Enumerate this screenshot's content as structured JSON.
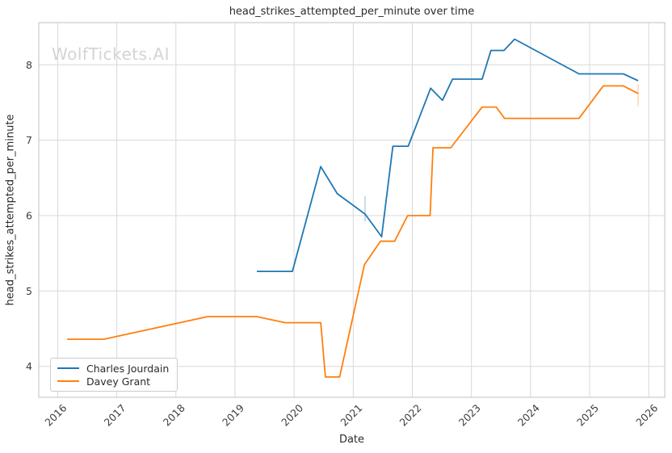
{
  "chart_data": {
    "type": "line",
    "title": "head_strikes_attempted_per_minute over time",
    "xlabel": "Date",
    "ylabel": "head_strikes_attempted_per_minute",
    "watermark": "WolfTickets.AI",
    "grid": true,
    "legend_position": "lower left",
    "xlim": [
      2015.68,
      2026.27
    ],
    "ylim": [
      3.59,
      8.56
    ],
    "x_ticks": [
      2016,
      2017,
      2018,
      2019,
      2020,
      2021,
      2022,
      2023,
      2024,
      2025,
      2026
    ],
    "y_ticks": [
      4,
      5,
      6,
      7,
      8
    ],
    "colors": {
      "grid": "#d8d8d8",
      "spine": "#cccccc",
      "tick_text": "#3d3d3d",
      "series_blue": "#1f77b4",
      "series_orange": "#ff7f0e"
    },
    "series": [
      {
        "name": "Charles Jourdain",
        "color": "#1f77b4",
        "points": [
          [
            2019.37,
            5.26
          ],
          [
            2019.97,
            5.26
          ],
          [
            2020.45,
            6.65
          ],
          [
            2020.73,
            6.29
          ],
          [
            2021.2,
            6.02
          ],
          [
            2021.48,
            5.72
          ],
          [
            2021.67,
            6.92
          ],
          [
            2021.93,
            6.92
          ],
          [
            2022.31,
            7.69
          ],
          [
            2022.51,
            7.53
          ],
          [
            2022.68,
            7.81
          ],
          [
            2023.18,
            7.81
          ],
          [
            2023.33,
            8.19
          ],
          [
            2023.55,
            8.19
          ],
          [
            2023.73,
            8.34
          ],
          [
            2024.82,
            7.88
          ],
          [
            2025.57,
            7.88
          ],
          [
            2025.82,
            7.79
          ]
        ]
      },
      {
        "name": "Davey Grant",
        "color": "#ff7f0e",
        "points": [
          [
            2016.16,
            4.36
          ],
          [
            2016.78,
            4.36
          ],
          [
            2018.54,
            4.66
          ],
          [
            2019.37,
            4.66
          ],
          [
            2019.85,
            4.58
          ],
          [
            2020.45,
            4.58
          ],
          [
            2020.53,
            3.86
          ],
          [
            2020.77,
            3.86
          ],
          [
            2021.19,
            5.35
          ],
          [
            2021.46,
            5.66
          ],
          [
            2021.7,
            5.66
          ],
          [
            2021.92,
            6.0
          ],
          [
            2022.3,
            6.0
          ],
          [
            2022.35,
            6.9
          ],
          [
            2022.65,
            6.9
          ],
          [
            2023.18,
            7.44
          ],
          [
            2023.42,
            7.44
          ],
          [
            2023.56,
            7.29
          ],
          [
            2024.82,
            7.29
          ],
          [
            2025.23,
            7.72
          ],
          [
            2025.57,
            7.72
          ],
          [
            2025.82,
            7.62
          ]
        ]
      }
    ],
    "error_bars": [
      {
        "series": "Charles Jourdain",
        "x": 2021.2,
        "y_low": 5.92,
        "y_high": 6.26
      },
      {
        "series": "Davey Grant",
        "x": 2025.82,
        "y_low": 7.45,
        "y_high": 7.74
      }
    ]
  }
}
